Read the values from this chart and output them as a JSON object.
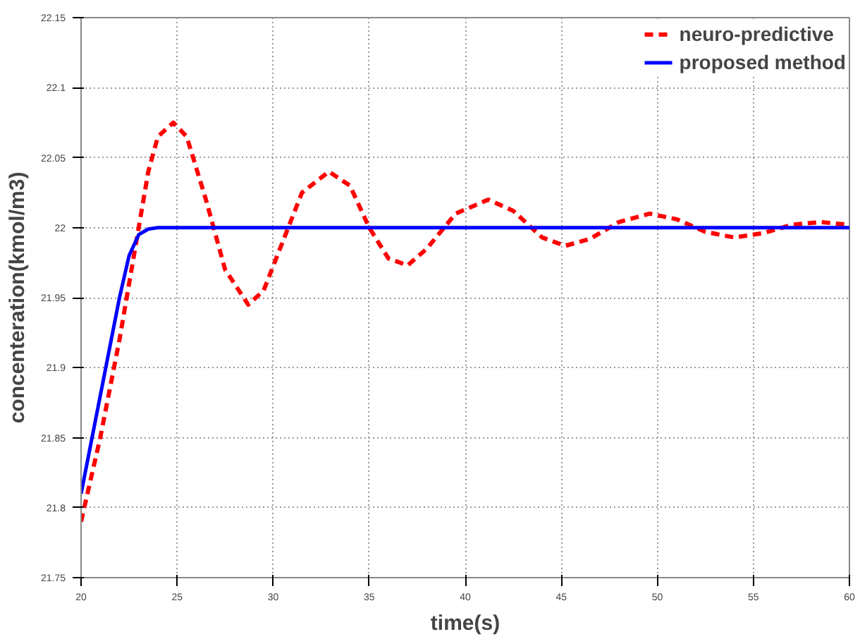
{
  "chart_data": {
    "type": "line",
    "xlabel": "time(s)",
    "ylabel": "concenteration(kmol/m3)",
    "xlim": [
      20,
      60
    ],
    "ylim": [
      21.75,
      22.15
    ],
    "xticks": [
      20,
      25,
      30,
      35,
      40,
      45,
      50,
      55,
      60
    ],
    "yticks": [
      21.75,
      21.8,
      21.85,
      21.9,
      21.95,
      22,
      22.05,
      22.1,
      22.15
    ],
    "grid": true,
    "legend": "top right",
    "series": [
      {
        "name": "neuro-predictive",
        "color": "#ff0000",
        "line_style": "dashed",
        "x": [
          20,
          21,
          22,
          23,
          23.5,
          24,
          24.8,
          25.5,
          26.5,
          27.5,
          28.7,
          29.5,
          30.5,
          31.5,
          32.9,
          34,
          35,
          36,
          37,
          38,
          39.5,
          41.2,
          42.5,
          44,
          45.2,
          46.5,
          48,
          49.6,
          51,
          52.5,
          54,
          55.5,
          57,
          58.5,
          60
        ],
        "values": [
          21.79,
          21.85,
          21.92,
          22.0,
          22.04,
          22.065,
          22.075,
          22.065,
          22.02,
          21.97,
          21.945,
          21.955,
          21.99,
          22.025,
          22.04,
          22.03,
          22.0,
          21.978,
          21.973,
          21.985,
          22.01,
          22.02,
          22.012,
          21.993,
          21.987,
          21.992,
          22.004,
          22.01,
          22.006,
          21.997,
          21.993,
          21.996,
          22.002,
          22.004,
          22.002
        ]
      },
      {
        "name": "proposed method",
        "color": "#0000ff",
        "line_style": "solid",
        "x": [
          20,
          21,
          22,
          22.5,
          23,
          23.5,
          24,
          60
        ],
        "values": [
          21.81,
          21.88,
          21.95,
          21.98,
          21.995,
          21.999,
          22.0,
          22.0
        ]
      }
    ]
  }
}
